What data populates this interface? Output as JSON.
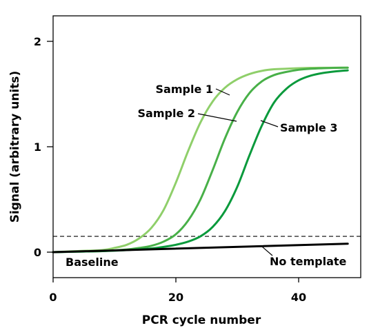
{
  "chart_data": {
    "type": "line",
    "xlabel": "PCR cycle number",
    "ylabel": "Signal (arbitrary units)",
    "xlim": [
      0,
      50
    ],
    "ylim": [
      -0.25,
      2.25
    ],
    "x_ticks": [
      0,
      20,
      40
    ],
    "y_ticks": [
      0,
      1,
      2
    ],
    "x_tick_labels": [
      "0",
      "20",
      "40"
    ],
    "y_tick_labels": [
      "0",
      "1",
      "2"
    ],
    "threshold": 0.15,
    "grid": false,
    "series": [
      {
        "name": "Sample 1",
        "color": "#8fcf6a",
        "x": [
          0,
          4,
          8,
          10,
          12,
          14,
          16,
          18,
          20,
          22,
          24,
          26,
          28,
          30,
          32,
          34,
          36,
          38,
          40,
          42,
          44,
          46,
          48
        ],
        "y": [
          0.0,
          0.01,
          0.02,
          0.04,
          0.07,
          0.13,
          0.23,
          0.4,
          0.66,
          0.96,
          1.23,
          1.43,
          1.56,
          1.64,
          1.69,
          1.72,
          1.735,
          1.74,
          1.745,
          1.748,
          1.749,
          1.75,
          1.75
        ]
      },
      {
        "name": "Sample 2",
        "color": "#48b048",
        "x": [
          0,
          4,
          8,
          12,
          14,
          16,
          18,
          20,
          22,
          24,
          26,
          28,
          30,
          32,
          34,
          36,
          38,
          40,
          42,
          44,
          46,
          48
        ],
        "y": [
          0.0,
          0.005,
          0.01,
          0.025,
          0.04,
          0.06,
          0.1,
          0.17,
          0.3,
          0.5,
          0.78,
          1.08,
          1.33,
          1.51,
          1.62,
          1.68,
          1.71,
          1.73,
          1.74,
          1.745,
          1.748,
          1.75
        ]
      },
      {
        "name": "Sample 3",
        "color": "#0a9a3c",
        "x": [
          0,
          4,
          8,
          12,
          16,
          18,
          20,
          22,
          24,
          26,
          28,
          30,
          32,
          34,
          36,
          38,
          40,
          42,
          44,
          46,
          48
        ],
        "y": [
          0.0,
          0.005,
          0.01,
          0.02,
          0.035,
          0.05,
          0.07,
          0.1,
          0.15,
          0.24,
          0.39,
          0.62,
          0.92,
          1.2,
          1.42,
          1.55,
          1.63,
          1.675,
          1.7,
          1.715,
          1.725
        ]
      },
      {
        "name": "No template",
        "color": "#000000",
        "x": [
          0,
          48
        ],
        "y": [
          0.0,
          0.08
        ]
      }
    ],
    "annotations": {
      "sample1": "Sample 1",
      "sample2": "Sample 2",
      "sample3": "Sample 3",
      "baseline": "Baseline",
      "no_template": "No template"
    }
  }
}
